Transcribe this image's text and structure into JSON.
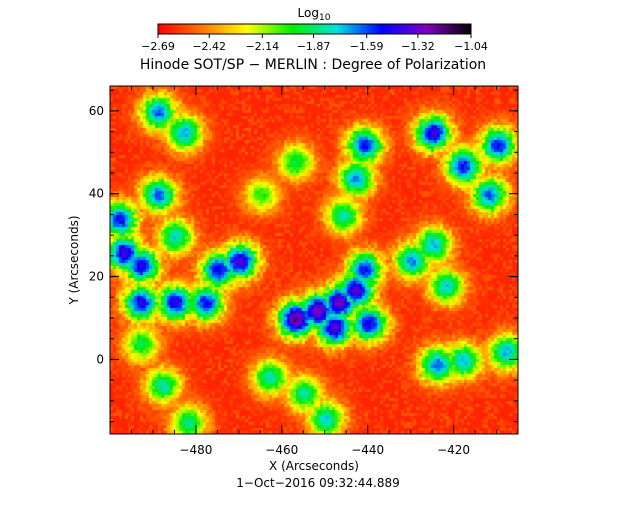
{
  "chart_data": {
    "type": "heatmap",
    "title": "Hinode SOT/SP − MERLIN : Degree of Polarization",
    "xlabel": "X (Arcseconds)",
    "ylabel": "Y (Arcseconds)",
    "footer": "1−Oct−2016 09:32:44.889",
    "xlim": [
      -500,
      -405
    ],
    "ylim": [
      -18,
      66
    ],
    "x_ticks": [
      {
        "value": -480,
        "label": "−480"
      },
      {
        "value": -460,
        "label": "−460"
      },
      {
        "value": -440,
        "label": "−440"
      },
      {
        "value": -420,
        "label": "−420"
      }
    ],
    "y_ticks": [
      {
        "value": 0,
        "label": "0"
      },
      {
        "value": 20,
        "label": "20"
      },
      {
        "value": 40,
        "label": "40"
      },
      {
        "value": 60,
        "label": "60"
      }
    ],
    "colorbar": {
      "label_base": "Log",
      "label_sub": "10",
      "range": [
        -2.69,
        -1.04
      ],
      "ticks": [
        {
          "value": -2.69,
          "label": "−2.69"
        },
        {
          "value": -2.42,
          "label": "−2.42"
        },
        {
          "value": -2.14,
          "label": "−2.14"
        },
        {
          "value": -1.87,
          "label": "−1.87"
        },
        {
          "value": -1.59,
          "label": "−1.59"
        },
        {
          "value": -1.32,
          "label": "−1.32"
        },
        {
          "value": -1.04,
          "label": "−1.04"
        }
      ],
      "colors": [
        "#ff0000",
        "#ff7a00",
        "#ffff00",
        "#00ee00",
        "#00e0e0",
        "#0000ff",
        "#8000c0",
        "#000000"
      ]
    },
    "magnetic_network": [
      {
        "x": -457,
        "y": 10,
        "level": -1.2
      },
      {
        "x": -452,
        "y": 12,
        "level": -1.25
      },
      {
        "x": -447,
        "y": 14,
        "level": -1.3
      },
      {
        "x": -443,
        "y": 17,
        "level": -1.35
      },
      {
        "x": -441,
        "y": 22,
        "level": -1.5
      },
      {
        "x": -448,
        "y": 8,
        "level": -1.35
      },
      {
        "x": -440,
        "y": 9,
        "level": -1.45
      },
      {
        "x": -470,
        "y": 24,
        "level": -1.35
      },
      {
        "x": -475,
        "y": 22,
        "level": -1.45
      },
      {
        "x": -478,
        "y": 14,
        "level": -1.5
      },
      {
        "x": -485,
        "y": 14,
        "level": -1.45
      },
      {
        "x": -493,
        "y": 14,
        "level": -1.45
      },
      {
        "x": -497,
        "y": 26,
        "level": -1.4
      },
      {
        "x": -493,
        "y": 23,
        "level": -1.45
      },
      {
        "x": -498,
        "y": 34,
        "level": -1.5
      },
      {
        "x": -489,
        "y": 40,
        "level": -1.6
      },
      {
        "x": -485,
        "y": 30,
        "level": -1.75
      },
      {
        "x": -489,
        "y": 60,
        "level": -1.6
      },
      {
        "x": -483,
        "y": 55,
        "level": -1.7
      },
      {
        "x": -441,
        "y": 52,
        "level": -1.5
      },
      {
        "x": -443,
        "y": 44,
        "level": -1.65
      },
      {
        "x": -446,
        "y": 35,
        "level": -1.8
      },
      {
        "x": -425,
        "y": 55,
        "level": -1.4
      },
      {
        "x": -418,
        "y": 47,
        "level": -1.5
      },
      {
        "x": -410,
        "y": 52,
        "level": -1.5
      },
      {
        "x": -412,
        "y": 40,
        "level": -1.6
      },
      {
        "x": -430,
        "y": 24,
        "level": -1.65
      },
      {
        "x": -425,
        "y": 28,
        "level": -1.7
      },
      {
        "x": -422,
        "y": 18,
        "level": -1.75
      },
      {
        "x": -424,
        "y": -1,
        "level": -1.6
      },
      {
        "x": -418,
        "y": 0,
        "level": -1.7
      },
      {
        "x": -408,
        "y": 2,
        "level": -1.7
      },
      {
        "x": -463,
        "y": -4,
        "level": -1.8
      },
      {
        "x": -455,
        "y": -8,
        "level": -1.8
      },
      {
        "x": -450,
        "y": -14,
        "level": -1.75
      },
      {
        "x": -488,
        "y": -6,
        "level": -1.8
      },
      {
        "x": -493,
        "y": 4,
        "level": -1.9
      },
      {
        "x": -482,
        "y": -15,
        "level": -1.85
      },
      {
        "x": -457,
        "y": 48,
        "level": -1.9
      },
      {
        "x": -465,
        "y": 40,
        "level": -2.0
      }
    ]
  }
}
